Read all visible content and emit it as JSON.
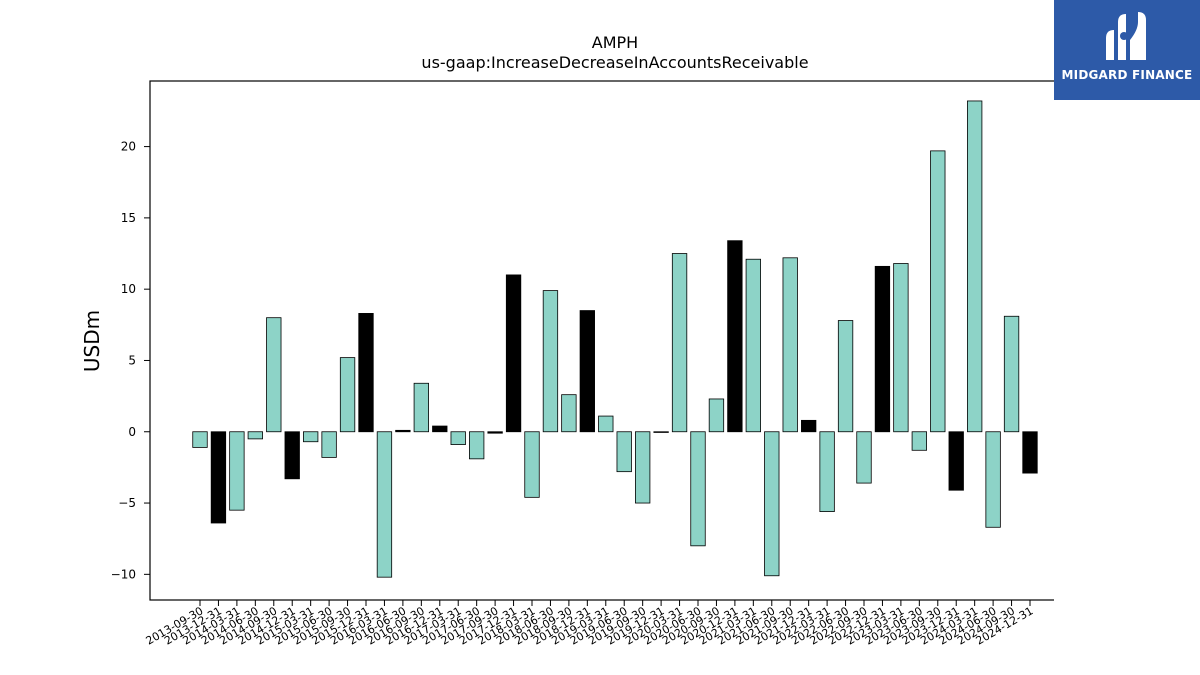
{
  "chart_data": {
    "type": "bar",
    "title": "AMPH",
    "subtitle": "us-gaap:IncreaseDecreaseInAccountsReceivable",
    "xlabel": "",
    "ylabel": "USDm",
    "ylim": [
      -11.8,
      24.6
    ],
    "yticks": [
      -10,
      -5,
      0,
      5,
      10,
      15,
      20
    ],
    "grid": false,
    "categories": [
      "2013-09-30",
      "2013-12-31",
      "2014-03-31",
      "2014-06-30",
      "2014-09-30",
      "2014-12-31",
      "2015-03-31",
      "2015-06-30",
      "2015-09-30",
      "2015-12-31",
      "2016-03-31",
      "2016-06-30",
      "2016-09-30",
      "2016-12-31",
      "2017-03-31",
      "2017-06-30",
      "2017-09-30",
      "2017-12-31",
      "2018-03-31",
      "2018-06-30",
      "2018-09-30",
      "2018-12-31",
      "2019-03-31",
      "2019-06-30",
      "2019-09-30",
      "2019-12-31",
      "2020-03-31",
      "2020-06-30",
      "2020-09-30",
      "2020-12-31",
      "2021-03-31",
      "2021-06-30",
      "2021-09-30",
      "2021-12-31",
      "2022-03-31",
      "2022-06-30",
      "2022-09-30",
      "2022-12-31",
      "2023-03-31",
      "2023-06-30",
      "2023-09-30",
      "2023-12-31",
      "2024-03-31",
      "2024-06-30",
      "2024-09-30",
      "2024-12-31"
    ],
    "values": [
      -1.1,
      -6.4,
      -5.5,
      -0.5,
      8.0,
      -3.3,
      -0.7,
      -1.8,
      5.2,
      8.3,
      -10.2,
      0.1,
      3.4,
      0.4,
      -0.9,
      -1.9,
      -0.1,
      11.0,
      -4.6,
      9.9,
      2.6,
      8.5,
      1.1,
      -2.8,
      -5.0,
      -0.05,
      12.5,
      -8.0,
      2.3,
      13.4,
      12.1,
      -10.1,
      12.2,
      0.8,
      -5.6,
      7.8,
      -3.6,
      11.6,
      11.8,
      -1.3,
      19.7,
      -4.1,
      23.2,
      -6.7,
      8.1,
      -2.9
    ],
    "bar_colors": [
      "#8dd3c7",
      "#000000",
      "#8dd3c7",
      "#8dd3c7",
      "#8dd3c7",
      "#000000",
      "#8dd3c7",
      "#8dd3c7",
      "#8dd3c7",
      "#000000",
      "#8dd3c7",
      "#000000",
      "#8dd3c7",
      "#000000",
      "#8dd3c7",
      "#8dd3c7",
      "#000000",
      "#000000",
      "#8dd3c7",
      "#8dd3c7",
      "#8dd3c7",
      "#000000",
      "#8dd3c7",
      "#8dd3c7",
      "#8dd3c7",
      "#8dd3c7",
      "#8dd3c7",
      "#8dd3c7",
      "#8dd3c7",
      "#000000",
      "#8dd3c7",
      "#8dd3c7",
      "#8dd3c7",
      "#000000",
      "#8dd3c7",
      "#8dd3c7",
      "#8dd3c7",
      "#000000",
      "#8dd3c7",
      "#8dd3c7",
      "#8dd3c7",
      "#000000",
      "#8dd3c7",
      "#8dd3c7",
      "#8dd3c7",
      "#000000"
    ]
  },
  "logo": {
    "text": "MIDGARD FINANCE",
    "background": "#2d5aa8",
    "icon": "midgard-logo-icon"
  }
}
